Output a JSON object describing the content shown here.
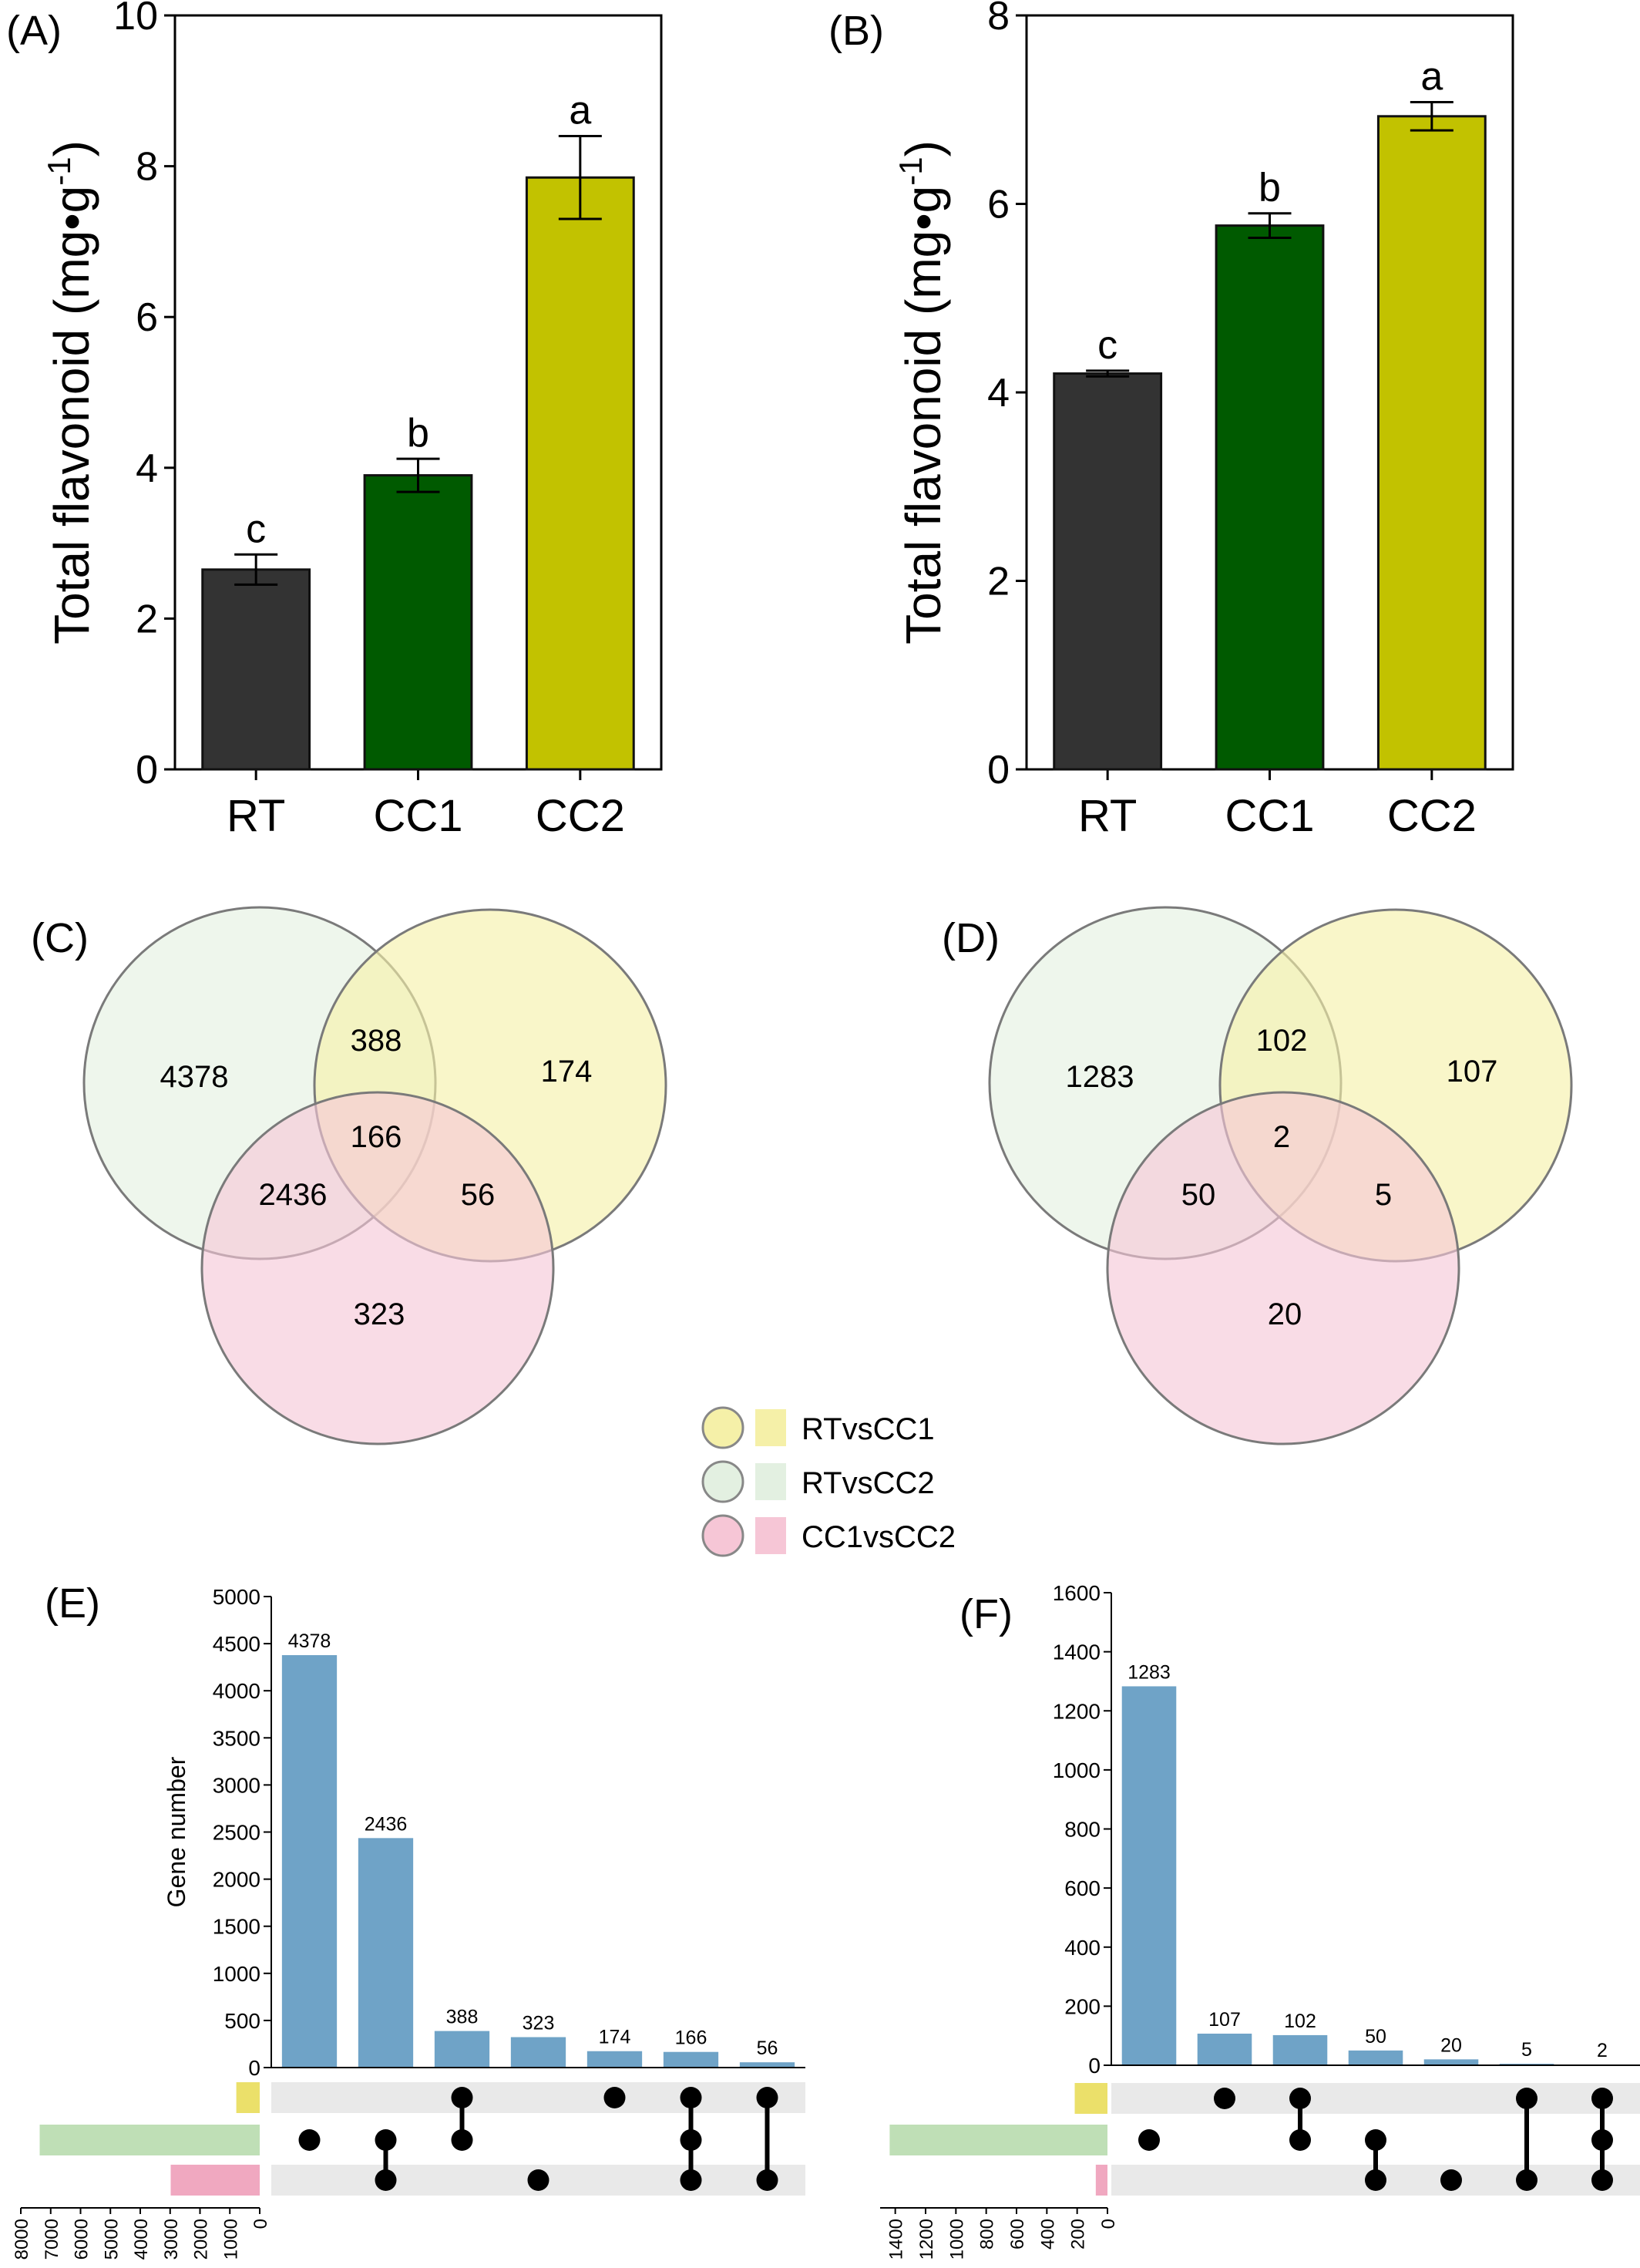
{
  "colors": {
    "RT": "#333333",
    "CC1": "#005a00",
    "CC2": "#c2c200",
    "upset_bar": "#6fa3c7",
    "RTvsCC1": "#f5f0a8",
    "RTvsCC2": "#e3f0e1",
    "CC1vsCC2": "#f6c6d6",
    "dot": "#000000",
    "track": "#e9e9e9"
  },
  "panels": {
    "A": "(A)",
    "B": "(B)",
    "C": "(C)",
    "D": "(D)",
    "E": "(E)",
    "F": "(F)"
  },
  "chart_data": [
    {
      "id": "A",
      "type": "bar",
      "ylabel": "Total flavonoid (mg•g-1)",
      "categories": [
        "RT",
        "CC1",
        "CC2"
      ],
      "values": [
        2.65,
        3.9,
        7.85
      ],
      "errors": [
        0.2,
        0.22,
        0.55
      ],
      "letters": [
        "c",
        "b",
        "a"
      ],
      "ylim": [
        0,
        10
      ],
      "yticks": [
        0,
        2,
        4,
        6,
        8,
        10
      ]
    },
    {
      "id": "B",
      "type": "bar",
      "ylabel": "Total flavonoid (mg•g-1)",
      "categories": [
        "RT",
        "CC1",
        "CC2"
      ],
      "values": [
        4.2,
        5.77,
        6.93
      ],
      "errors": [
        0.03,
        0.13,
        0.15
      ],
      "letters": [
        "c",
        "b",
        "a"
      ],
      "ylim": [
        0,
        8
      ],
      "yticks": [
        0,
        2,
        4,
        6,
        8
      ]
    },
    {
      "id": "C",
      "type": "venn",
      "sets": [
        "RTvsCC2",
        "RTvsCC1",
        "CC1vsCC2"
      ],
      "regions": {
        "RTvsCC2_only": "4378",
        "RTvsCC1_only": "174",
        "CC1vsCC2_only": "323",
        "RTvsCC2_RTvsCC1": "388",
        "RTvsCC2_CC1vsCC2": "2436",
        "RTvsCC1_CC1vsCC2": "56",
        "all": "166"
      }
    },
    {
      "id": "D",
      "type": "venn",
      "sets": [
        "RTvsCC2",
        "RTvsCC1",
        "CC1vsCC2"
      ],
      "regions": {
        "RTvsCC2_only": "1283",
        "RTvsCC1_only": "107",
        "CC1vsCC2_only": "20",
        "RTvsCC2_RTvsCC1": "102",
        "RTvsCC2_CC1vsCC2": "50",
        "RTvsCC1_CC1vsCC2": "5",
        "all": "2"
      }
    },
    {
      "id": "E",
      "type": "bar",
      "ylabel": "Gene number",
      "ylim": [
        0,
        5000
      ],
      "yticks": [
        0,
        500,
        1000,
        1500,
        2000,
        2500,
        3000,
        3500,
        4000,
        4500,
        5000
      ],
      "values": [
        4378,
        2436,
        388,
        323,
        174,
        166,
        56
      ],
      "labels": [
        "4378",
        "2436",
        "388",
        "323",
        "174",
        "166",
        "56"
      ],
      "combos": [
        [
          1
        ],
        [
          1,
          2
        ],
        [
          0,
          1
        ],
        [
          2
        ],
        [
          0
        ],
        [
          0,
          1,
          2
        ],
        [
          0,
          2
        ]
      ],
      "set_sizes": [
        784,
        7368,
        2981
      ],
      "set_xlim": [
        0,
        8000
      ],
      "set_ticks": [
        0,
        1000,
        2000,
        3000,
        4000,
        5000,
        6000,
        7000,
        8000
      ]
    },
    {
      "id": "F",
      "type": "bar",
      "ylabel": "",
      "ylim": [
        0,
        1600
      ],
      "yticks": [
        0,
        200,
        400,
        600,
        800,
        1000,
        1200,
        1400,
        1600
      ],
      "values": [
        1283,
        107,
        102,
        50,
        20,
        5,
        2
      ],
      "labels": [
        "1283",
        "107",
        "102",
        "50",
        "20",
        "5",
        "2"
      ],
      "combos": [
        [
          1
        ],
        [
          0
        ],
        [
          0,
          1
        ],
        [
          1,
          2
        ],
        [
          2
        ],
        [
          0,
          2
        ],
        [
          0,
          1,
          2
        ]
      ],
      "set_sizes": [
        216,
        1437,
        77
      ],
      "set_xlim": [
        0,
        1500
      ],
      "set_ticks": [
        0,
        200,
        400,
        600,
        800,
        1000,
        1200,
        1400
      ]
    }
  ],
  "legend": [
    {
      "label": "RTvsCC1",
      "color_key": "RTvsCC1"
    },
    {
      "label": "RTvsCC2",
      "color_key": "RTvsCC2"
    },
    {
      "label": "CC1vsCC2",
      "color_key": "CC1vsCC2"
    }
  ]
}
